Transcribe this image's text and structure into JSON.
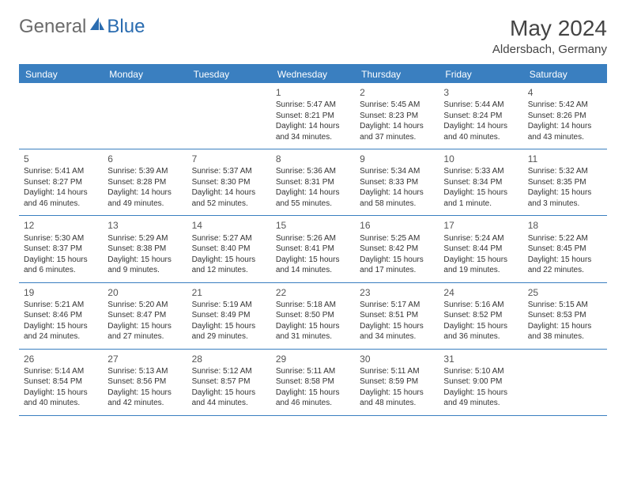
{
  "brand": {
    "part1": "General",
    "part2": "Blue"
  },
  "title": "May 2024",
  "location": "Aldersbach, Germany",
  "header_bg": "#3a7fc0",
  "dayNames": [
    "Sunday",
    "Monday",
    "Tuesday",
    "Wednesday",
    "Thursday",
    "Friday",
    "Saturday"
  ],
  "weeks": [
    [
      null,
      null,
      null,
      {
        "n": "1",
        "sr": "Sunrise: 5:47 AM",
        "ss": "Sunset: 8:21 PM",
        "d1": "Daylight: 14 hours",
        "d2": "and 34 minutes."
      },
      {
        "n": "2",
        "sr": "Sunrise: 5:45 AM",
        "ss": "Sunset: 8:23 PM",
        "d1": "Daylight: 14 hours",
        "d2": "and 37 minutes."
      },
      {
        "n": "3",
        "sr": "Sunrise: 5:44 AM",
        "ss": "Sunset: 8:24 PM",
        "d1": "Daylight: 14 hours",
        "d2": "and 40 minutes."
      },
      {
        "n": "4",
        "sr": "Sunrise: 5:42 AM",
        "ss": "Sunset: 8:26 PM",
        "d1": "Daylight: 14 hours",
        "d2": "and 43 minutes."
      }
    ],
    [
      {
        "n": "5",
        "sr": "Sunrise: 5:41 AM",
        "ss": "Sunset: 8:27 PM",
        "d1": "Daylight: 14 hours",
        "d2": "and 46 minutes."
      },
      {
        "n": "6",
        "sr": "Sunrise: 5:39 AM",
        "ss": "Sunset: 8:28 PM",
        "d1": "Daylight: 14 hours",
        "d2": "and 49 minutes."
      },
      {
        "n": "7",
        "sr": "Sunrise: 5:37 AM",
        "ss": "Sunset: 8:30 PM",
        "d1": "Daylight: 14 hours",
        "d2": "and 52 minutes."
      },
      {
        "n": "8",
        "sr": "Sunrise: 5:36 AM",
        "ss": "Sunset: 8:31 PM",
        "d1": "Daylight: 14 hours",
        "d2": "and 55 minutes."
      },
      {
        "n": "9",
        "sr": "Sunrise: 5:34 AM",
        "ss": "Sunset: 8:33 PM",
        "d1": "Daylight: 14 hours",
        "d2": "and 58 minutes."
      },
      {
        "n": "10",
        "sr": "Sunrise: 5:33 AM",
        "ss": "Sunset: 8:34 PM",
        "d1": "Daylight: 15 hours",
        "d2": "and 1 minute."
      },
      {
        "n": "11",
        "sr": "Sunrise: 5:32 AM",
        "ss": "Sunset: 8:35 PM",
        "d1": "Daylight: 15 hours",
        "d2": "and 3 minutes."
      }
    ],
    [
      {
        "n": "12",
        "sr": "Sunrise: 5:30 AM",
        "ss": "Sunset: 8:37 PM",
        "d1": "Daylight: 15 hours",
        "d2": "and 6 minutes."
      },
      {
        "n": "13",
        "sr": "Sunrise: 5:29 AM",
        "ss": "Sunset: 8:38 PM",
        "d1": "Daylight: 15 hours",
        "d2": "and 9 minutes."
      },
      {
        "n": "14",
        "sr": "Sunrise: 5:27 AM",
        "ss": "Sunset: 8:40 PM",
        "d1": "Daylight: 15 hours",
        "d2": "and 12 minutes."
      },
      {
        "n": "15",
        "sr": "Sunrise: 5:26 AM",
        "ss": "Sunset: 8:41 PM",
        "d1": "Daylight: 15 hours",
        "d2": "and 14 minutes."
      },
      {
        "n": "16",
        "sr": "Sunrise: 5:25 AM",
        "ss": "Sunset: 8:42 PM",
        "d1": "Daylight: 15 hours",
        "d2": "and 17 minutes."
      },
      {
        "n": "17",
        "sr": "Sunrise: 5:24 AM",
        "ss": "Sunset: 8:44 PM",
        "d1": "Daylight: 15 hours",
        "d2": "and 19 minutes."
      },
      {
        "n": "18",
        "sr": "Sunrise: 5:22 AM",
        "ss": "Sunset: 8:45 PM",
        "d1": "Daylight: 15 hours",
        "d2": "and 22 minutes."
      }
    ],
    [
      {
        "n": "19",
        "sr": "Sunrise: 5:21 AM",
        "ss": "Sunset: 8:46 PM",
        "d1": "Daylight: 15 hours",
        "d2": "and 24 minutes."
      },
      {
        "n": "20",
        "sr": "Sunrise: 5:20 AM",
        "ss": "Sunset: 8:47 PM",
        "d1": "Daylight: 15 hours",
        "d2": "and 27 minutes."
      },
      {
        "n": "21",
        "sr": "Sunrise: 5:19 AM",
        "ss": "Sunset: 8:49 PM",
        "d1": "Daylight: 15 hours",
        "d2": "and 29 minutes."
      },
      {
        "n": "22",
        "sr": "Sunrise: 5:18 AM",
        "ss": "Sunset: 8:50 PM",
        "d1": "Daylight: 15 hours",
        "d2": "and 31 minutes."
      },
      {
        "n": "23",
        "sr": "Sunrise: 5:17 AM",
        "ss": "Sunset: 8:51 PM",
        "d1": "Daylight: 15 hours",
        "d2": "and 34 minutes."
      },
      {
        "n": "24",
        "sr": "Sunrise: 5:16 AM",
        "ss": "Sunset: 8:52 PM",
        "d1": "Daylight: 15 hours",
        "d2": "and 36 minutes."
      },
      {
        "n": "25",
        "sr": "Sunrise: 5:15 AM",
        "ss": "Sunset: 8:53 PM",
        "d1": "Daylight: 15 hours",
        "d2": "and 38 minutes."
      }
    ],
    [
      {
        "n": "26",
        "sr": "Sunrise: 5:14 AM",
        "ss": "Sunset: 8:54 PM",
        "d1": "Daylight: 15 hours",
        "d2": "and 40 minutes."
      },
      {
        "n": "27",
        "sr": "Sunrise: 5:13 AM",
        "ss": "Sunset: 8:56 PM",
        "d1": "Daylight: 15 hours",
        "d2": "and 42 minutes."
      },
      {
        "n": "28",
        "sr": "Sunrise: 5:12 AM",
        "ss": "Sunset: 8:57 PM",
        "d1": "Daylight: 15 hours",
        "d2": "and 44 minutes."
      },
      {
        "n": "29",
        "sr": "Sunrise: 5:11 AM",
        "ss": "Sunset: 8:58 PM",
        "d1": "Daylight: 15 hours",
        "d2": "and 46 minutes."
      },
      {
        "n": "30",
        "sr": "Sunrise: 5:11 AM",
        "ss": "Sunset: 8:59 PM",
        "d1": "Daylight: 15 hours",
        "d2": "and 48 minutes."
      },
      {
        "n": "31",
        "sr": "Sunrise: 5:10 AM",
        "ss": "Sunset: 9:00 PM",
        "d1": "Daylight: 15 hours",
        "d2": "and 49 minutes."
      },
      null
    ]
  ]
}
